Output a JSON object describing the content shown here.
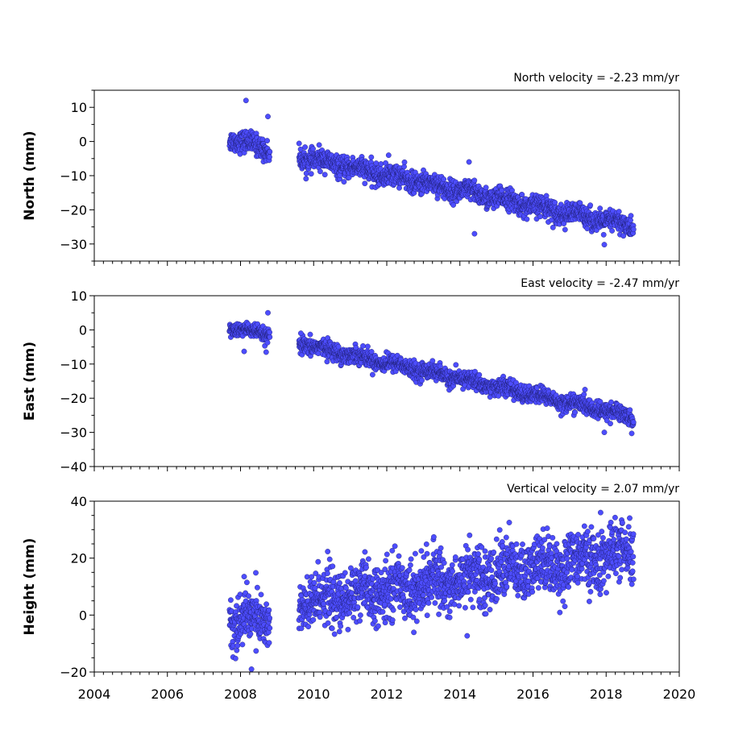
{
  "chart_data": [
    {
      "type": "scatter",
      "title": "North velocity = -2.23 mm/yr",
      "ylabel": "North (mm)",
      "xlim": [
        2004,
        2020
      ],
      "ylim": [
        -35,
        15
      ],
      "yticks": [
        10,
        0,
        -10,
        -20,
        -30
      ],
      "ytick_labels": [
        "10",
        "0",
        "−10",
        "−20",
        "−30"
      ],
      "yminor_step": 5,
      "color": "#4d4dff",
      "segments": [
        {
          "x_start": 2007.7,
          "x_end": 2008.8,
          "y_start": 1.0,
          "y_end": -2.5,
          "scatter": 1.5
        },
        {
          "x_start": 2009.6,
          "x_end": 2018.75,
          "y_start": -4.5,
          "y_end": -25.0,
          "scatter": 1.5
        }
      ],
      "outliers": [
        {
          "x": 2008.15,
          "y": 12.0
        },
        {
          "x": 2008.75,
          "y": 7.3
        },
        {
          "x": 2012.05,
          "y": -4.0
        },
        {
          "x": 2014.25,
          "y": -6.0
        },
        {
          "x": 2014.4,
          "y": -27.0
        },
        {
          "x": 2017.95,
          "y": -30.2
        }
      ]
    },
    {
      "type": "scatter",
      "title": "East velocity = -2.47 mm/yr",
      "ylabel": "East (mm)",
      "xlim": [
        2004,
        2020
      ],
      "ylim": [
        -40,
        10
      ],
      "yticks": [
        10,
        0,
        -10,
        -20,
        -30,
        -40
      ],
      "ytick_labels": [
        "10",
        "0",
        "−10",
        "−20",
        "−30",
        "−40"
      ],
      "yminor_step": 5,
      "color": "#4d4dff",
      "segments": [
        {
          "x_start": 2007.7,
          "x_end": 2008.8,
          "y_start": 0.5,
          "y_end": -1.5,
          "scatter": 1.0
        },
        {
          "x_start": 2009.6,
          "x_end": 2018.75,
          "y_start": -4.0,
          "y_end": -25.5,
          "scatter": 1.2
        }
      ],
      "outliers": [
        {
          "x": 2008.75,
          "y": 5.0
        },
        {
          "x": 2009.65,
          "y": -1.0
        },
        {
          "x": 2008.1,
          "y": -6.3
        },
        {
          "x": 2008.7,
          "y": -6.5
        },
        {
          "x": 2017.95,
          "y": -30.0
        },
        {
          "x": 2018.7,
          "y": -30.3
        }
      ]
    },
    {
      "type": "scatter",
      "title": "Vertical velocity = 2.07 mm/yr",
      "ylabel": "Height (mm)",
      "xlim": [
        2004,
        2020
      ],
      "ylim": [
        -20,
        40
      ],
      "yticks": [
        40,
        20,
        0,
        -20
      ],
      "ytick_labels": [
        "40",
        "20",
        "0",
        "−20"
      ],
      "yminor_step": 5,
      "color": "#4d4dff",
      "segments": [
        {
          "x_start": 2007.7,
          "x_end": 2008.8,
          "y_start": -2.0,
          "y_end": -1.0,
          "scatter": 4.5
        },
        {
          "x_start": 2009.6,
          "x_end": 2018.75,
          "y_start": 4.0,
          "y_end": 22.0,
          "scatter": 5.0
        }
      ],
      "outliers": [
        {
          "x": 2008.3,
          "y": -19.0
        },
        {
          "x": 2008.1,
          "y": 13.5
        },
        {
          "x": 2014.2,
          "y": -7.3
        },
        {
          "x": 2017.85,
          "y": 36.0
        },
        {
          "x": 2015.35,
          "y": 32.5
        }
      ]
    }
  ],
  "xaxis": {
    "ticks": [
      2004,
      2006,
      2008,
      2010,
      2012,
      2014,
      2016,
      2018,
      2020
    ],
    "tick_labels": [
      "2004",
      "2006",
      "2008",
      "2010",
      "2012",
      "2014",
      "2016",
      "2018",
      "2020"
    ],
    "minor_step": 0.25
  }
}
